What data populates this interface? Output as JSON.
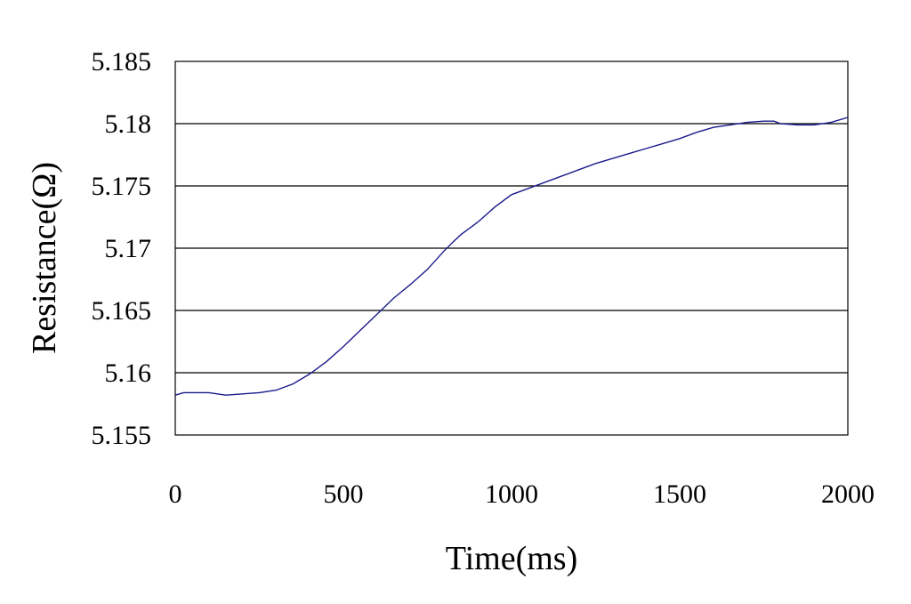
{
  "chart_data": {
    "type": "line",
    "title": "",
    "xlabel": "Time(ms)",
    "ylabel": "Resistance(Ω)",
    "xlim": [
      0,
      2000
    ],
    "ylim": [
      5.155,
      5.185
    ],
    "x_ticks": [
      "0",
      "500",
      "1000",
      "1500",
      "2000"
    ],
    "y_ticks": [
      "5.155",
      "5.16",
      "5.165",
      "5.17",
      "5.175",
      "5.18",
      "5.185"
    ],
    "grid": "horizontal",
    "legend": "none",
    "line_color": "#1a1a8c",
    "series": [
      {
        "x": [
          0,
          25,
          50,
          100,
          150,
          200,
          250,
          300,
          350,
          400,
          450,
          500,
          550,
          600,
          650,
          700,
          750,
          800,
          830,
          850,
          900,
          950,
          1000,
          1050,
          1100,
          1150,
          1200,
          1250,
          1300,
          1350,
          1400,
          1450,
          1500,
          1550,
          1600,
          1650,
          1700,
          1750,
          1780,
          1800,
          1850,
          1900,
          1950,
          2000
        ],
        "y": [
          5.1582,
          5.1584,
          5.1584,
          5.1584,
          5.1582,
          5.1583,
          5.1584,
          5.1586,
          5.1591,
          5.1599,
          5.1609,
          5.1621,
          5.1634,
          5.1647,
          5.166,
          5.1671,
          5.1683,
          5.1698,
          5.1706,
          5.1711,
          5.1721,
          5.1733,
          5.1743,
          5.1748,
          5.1753,
          5.1758,
          5.1763,
          5.1768,
          5.1772,
          5.1776,
          5.178,
          5.1784,
          5.1788,
          5.1793,
          5.1797,
          5.1799,
          5.1801,
          5.1802,
          5.1802,
          5.18,
          5.1799,
          5.1799,
          5.1801,
          5.1805
        ]
      }
    ]
  }
}
